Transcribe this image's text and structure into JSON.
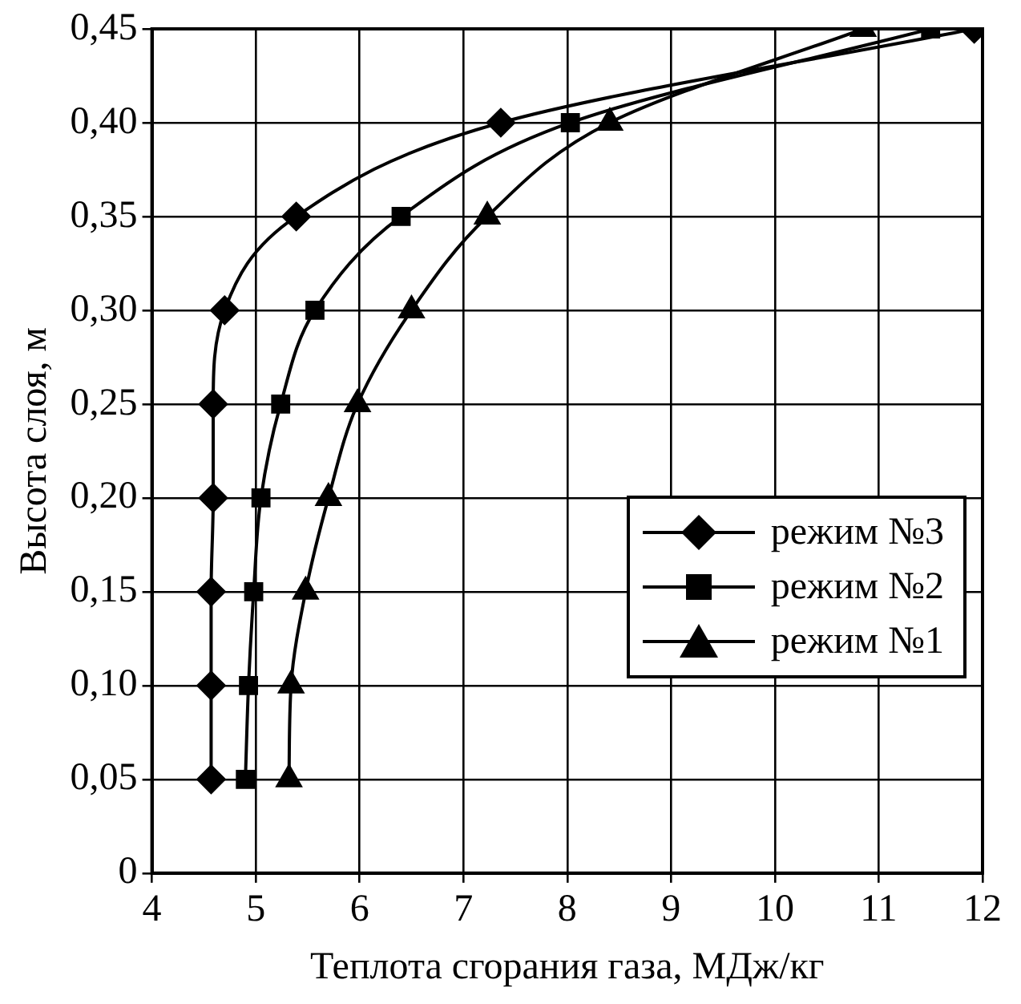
{
  "chart_data": {
    "type": "line",
    "xlabel": "Теплота сгорания газа, МДж/кг",
    "ylabel": "Высота слоя, м",
    "xlim": [
      4,
      12
    ],
    "xticks": [
      4,
      5,
      6,
      7,
      8,
      9,
      10,
      11,
      12
    ],
    "ylim": [
      0,
      0.45
    ],
    "yticks": [
      0,
      {
        "value": 0.05,
        "label": "0,05"
      },
      {
        "value": 0.1,
        "label": "0,10"
      },
      {
        "value": 0.15,
        "label": "0,15"
      },
      {
        "value": 0.2,
        "label": "0,20"
      },
      {
        "value": 0.25,
        "label": "0,25"
      },
      {
        "value": 0.3,
        "label": "0,30"
      },
      {
        "value": 0.35,
        "label": "0,35"
      },
      {
        "value": 0.4,
        "label": "0,40"
      },
      {
        "value": 0.45,
        "label": "0,45"
      }
    ],
    "grid": true,
    "legend": "center right",
    "series": [
      {
        "name": "режим №3",
        "color": "#000000",
        "marker": "diamond",
        "x": [
          4.57,
          4.57,
          4.57,
          4.59,
          4.59,
          4.7,
          5.39,
          7.36,
          11.92
        ],
        "values": [
          0.05,
          0.1,
          0.15,
          0.2,
          0.25,
          0.3,
          0.35,
          0.4,
          0.45
        ]
      },
      {
        "name": "режим №2",
        "color": "#000000",
        "marker": "square",
        "x": [
          4.9,
          4.93,
          4.98,
          5.05,
          5.24,
          5.57,
          6.4,
          8.03,
          11.5
        ],
        "values": [
          0.05,
          0.1,
          0.15,
          0.2,
          0.25,
          0.3,
          0.35,
          0.4,
          0.45
        ]
      },
      {
        "name": "режим №1",
        "color": "#000000",
        "marker": "triangle",
        "x": [
          5.32,
          5.34,
          5.48,
          5.7,
          5.98,
          6.5,
          7.23,
          8.41,
          10.85
        ],
        "values": [
          0.05,
          0.1,
          0.15,
          0.2,
          0.25,
          0.3,
          0.35,
          0.4,
          0.45
        ]
      }
    ]
  }
}
